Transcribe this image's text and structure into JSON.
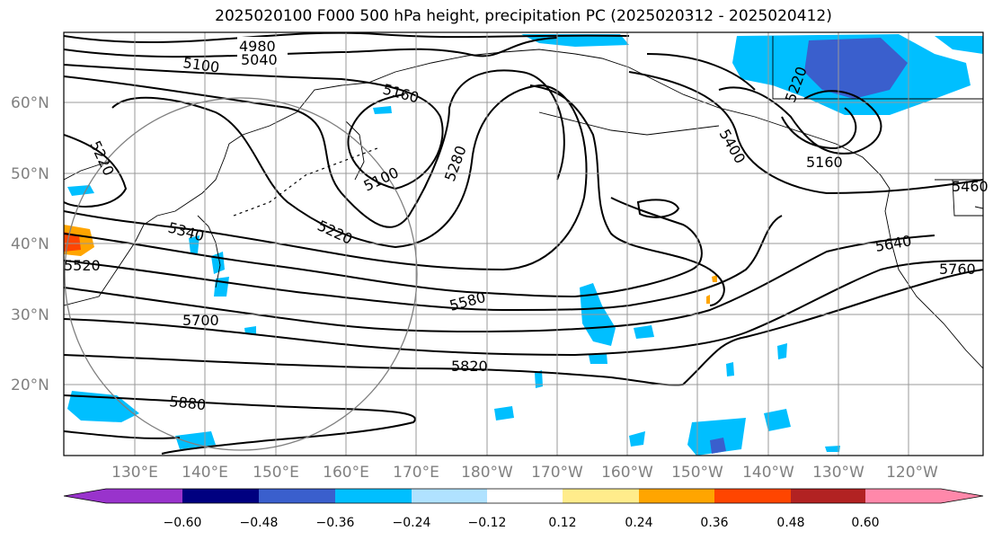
{
  "title": "2025020100 F000 500 hPa height, precipitation PC (2025020312 - 2025020412)",
  "lon_ticks": [
    "130°E",
    "140°E",
    "150°E",
    "160°E",
    "170°E",
    "180°W",
    "170°W",
    "160°W",
    "150°W",
    "140°W",
    "130°W",
    "120°W"
  ],
  "lat_ticks": [
    "60°N",
    "50°N",
    "40°N",
    "30°N",
    "20°N"
  ],
  "contour_labels": [
    "4980",
    "5040",
    "5100",
    "5160",
    "5220",
    "5280",
    "5340",
    "5400",
    "5460",
    "5520",
    "5580",
    "5640",
    "5700",
    "5760",
    "5820",
    "5880",
    "5100",
    "5160",
    "5220",
    "5220"
  ],
  "colorbar": {
    "ticks": [
      "−0.60",
      "−0.48",
      "−0.36",
      "−0.24",
      "−0.12",
      "0.12",
      "0.24",
      "0.36",
      "0.48",
      "0.60"
    ],
    "colors": [
      "#9933cc",
      "#000080",
      "#3a5fcd",
      "#00bfff",
      "#b0e2ff",
      "#ffffff",
      "#ffec8b",
      "#ffa500",
      "#ff4500",
      "#b22222",
      "#ff88aa"
    ]
  }
}
